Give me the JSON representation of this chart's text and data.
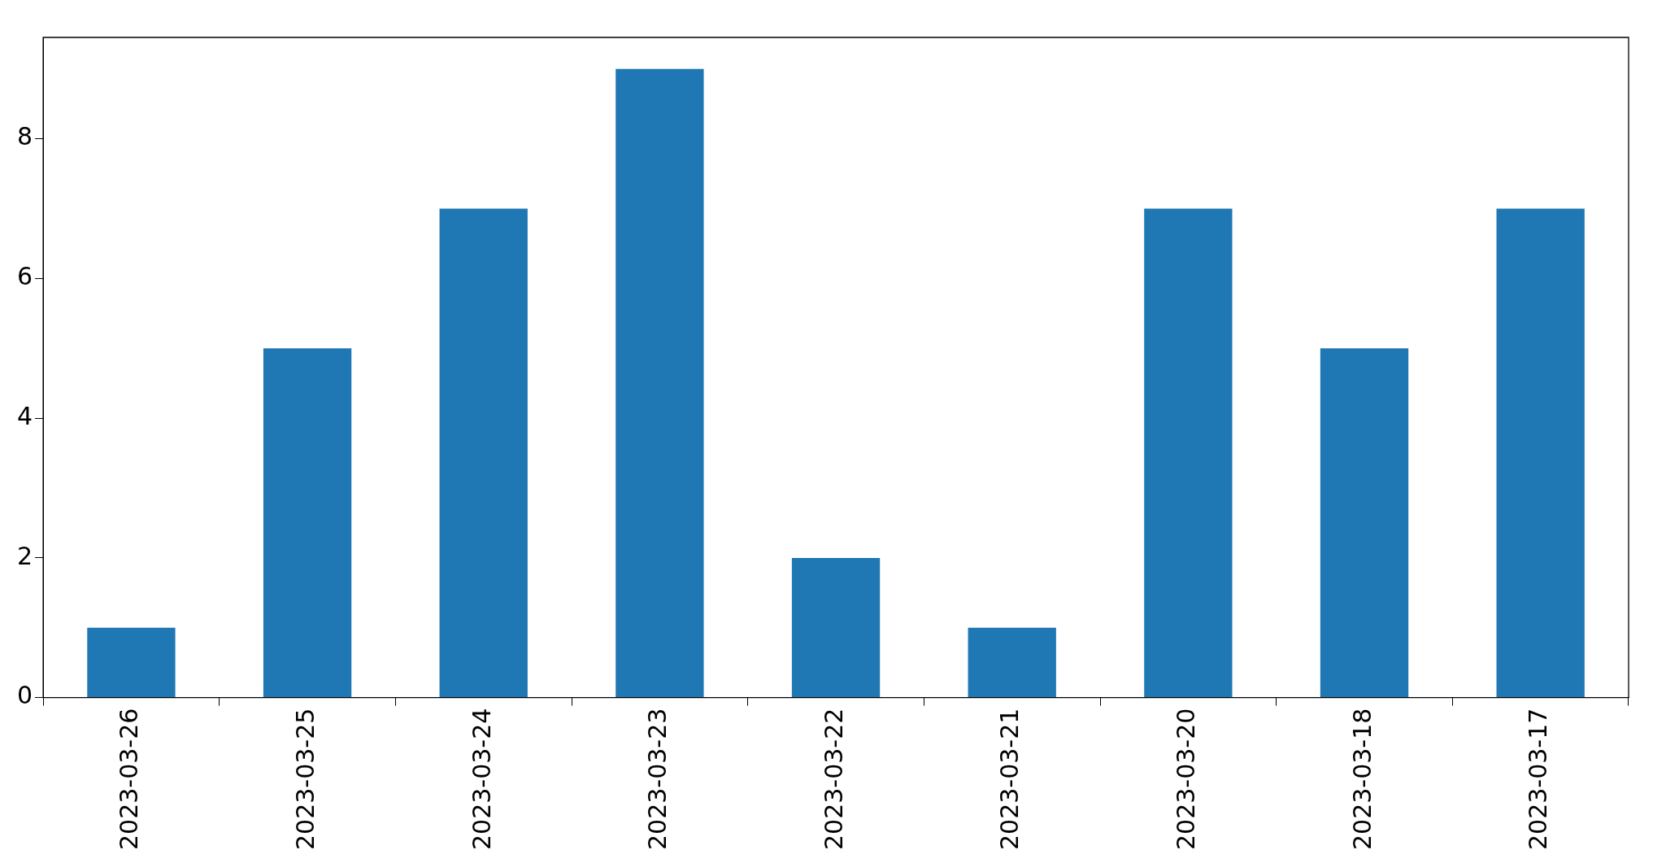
{
  "chart_data": {
    "type": "bar",
    "categories": [
      "2023-03-26",
      "2023-03-25",
      "2023-03-24",
      "2023-03-23",
      "2023-03-22",
      "2023-03-21",
      "2023-03-20",
      "2023-03-18",
      "2023-03-17"
    ],
    "values": [
      1,
      5,
      7,
      9,
      2,
      1,
      7,
      5,
      7
    ],
    "color": "#1f77b4",
    "ylim": [
      0,
      9.45
    ],
    "yticks": [
      0,
      2,
      4,
      6,
      8
    ],
    "grid": false,
    "legend": false
  }
}
